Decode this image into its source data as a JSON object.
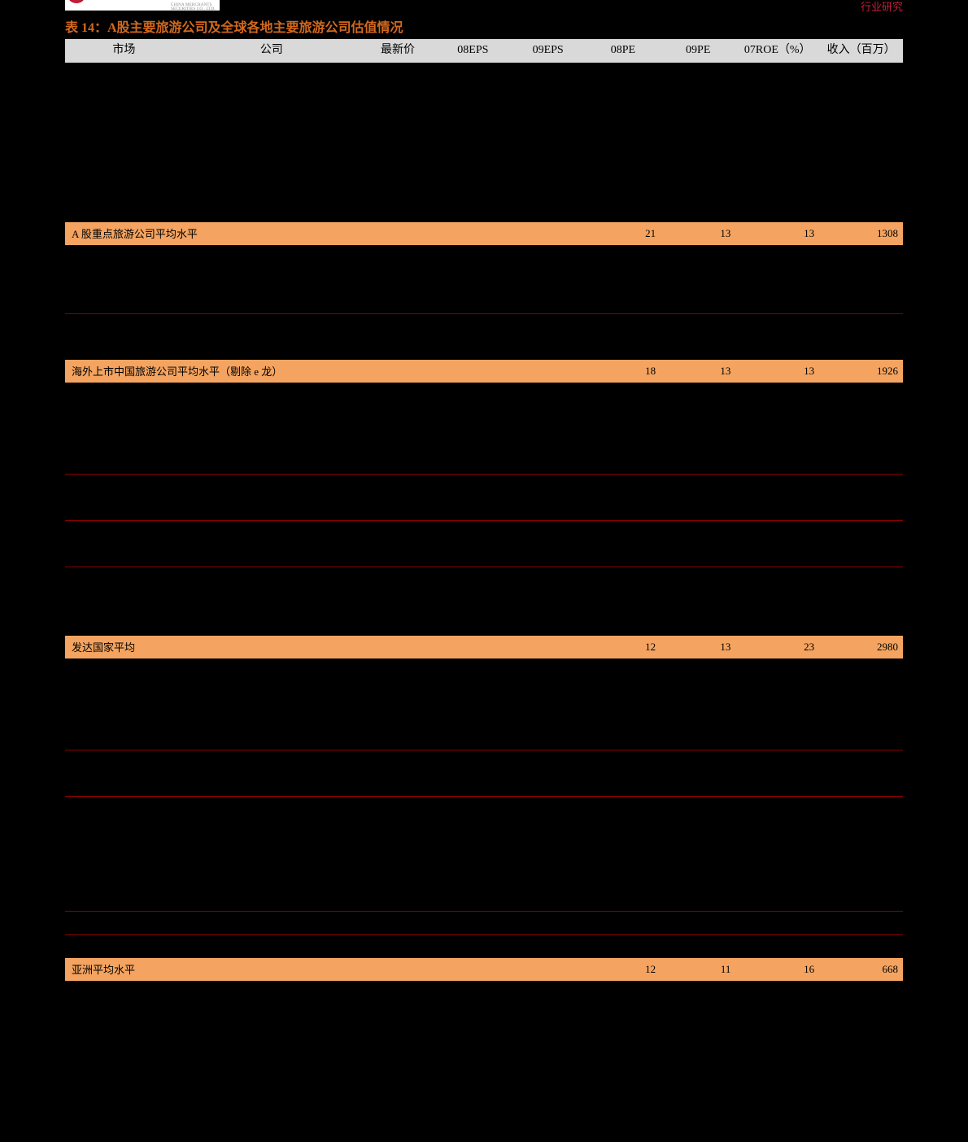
{
  "header": {
    "logo_sub": "CHINA MERCHANTS SECURITIES CO., LTD.",
    "right_label": "行业研究"
  },
  "title": "表 14：A股主要旅游公司及全球各地主要旅游公司估值情况",
  "columns": [
    "市场",
    "公司",
    "最新价",
    "08EPS",
    "09EPS",
    "08PE",
    "09PE",
    "07ROE（%）",
    "收入（百万）"
  ],
  "sections": [
    {
      "rows": [
        {
          "sep": false,
          "cells": [
            "",
            "",
            "",
            "",
            "",
            "",
            "",
            "",
            ""
          ]
        },
        {
          "sep": false,
          "cells": [
            "",
            "",
            "",
            "",
            "",
            "",
            "",
            "",
            ""
          ]
        },
        {
          "sep": false,
          "cells": [
            "",
            "",
            "",
            "",
            "",
            "",
            "",
            "",
            ""
          ]
        },
        {
          "sep": false,
          "cells": [
            "",
            "",
            "",
            "",
            "",
            "",
            "",
            "",
            ""
          ]
        },
        {
          "sep": false,
          "cells": [
            "",
            "",
            "",
            "",
            "",
            "",
            "",
            "",
            ""
          ]
        },
        {
          "sep": false,
          "cells": [
            "",
            "",
            "",
            "",
            "",
            "",
            "",
            "",
            ""
          ]
        },
        {
          "sep": false,
          "cells": [
            "",
            "",
            "",
            "",
            "",
            "",
            "",
            "",
            ""
          ]
        }
      ],
      "summary": {
        "label": "A 股重点旅游公司平均水平",
        "pe08": "21",
        "pe09": "13",
        "roe": "13",
        "rev": "1308"
      }
    },
    {
      "rows": [
        {
          "sep": false,
          "cells": [
            "",
            "",
            "",
            "",
            "",
            "",
            "",
            "",
            ""
          ]
        },
        {
          "sep": false,
          "cells": [
            "",
            "",
            "",
            "",
            "",
            "",
            "",
            "",
            ""
          ]
        },
        {
          "sep": true,
          "cells": [
            "",
            "",
            "",
            "",
            "",
            "",
            "",
            "",
            ""
          ]
        },
        {
          "sep": false,
          "cells": [
            "",
            "",
            "",
            "",
            "",
            "",
            "",
            "",
            ""
          ]
        },
        {
          "sep": false,
          "cells": [
            "",
            "",
            "",
            "",
            "",
            "",
            "",
            "",
            ""
          ]
        }
      ],
      "summary": {
        "label": "海外上市中国旅游公司平均水平（剔除 e 龙）",
        "pe08": "18",
        "pe09": "13",
        "roe": "13",
        "rev": "1926"
      }
    },
    {
      "rows": [
        {
          "sep": false,
          "cells": [
            "",
            "",
            "",
            "",
            "",
            "",
            "",
            "",
            ""
          ]
        },
        {
          "sep": false,
          "cells": [
            "",
            "",
            "",
            "",
            "",
            "",
            "",
            "",
            ""
          ]
        },
        {
          "sep": false,
          "cells": [
            "",
            "",
            "",
            "",
            "",
            "",
            "",
            "",
            ""
          ]
        },
        {
          "sep": true,
          "cells": [
            "",
            "",
            "",
            "",
            "",
            "",
            "",
            "",
            ""
          ]
        },
        {
          "sep": false,
          "cells": [
            "",
            "",
            "",
            "",
            "",
            "",
            "",
            "",
            ""
          ]
        },
        {
          "sep": true,
          "cells": [
            "",
            "",
            "",
            "",
            "",
            "",
            "",
            "",
            ""
          ]
        },
        {
          "sep": false,
          "cells": [
            "",
            "",
            "",
            "",
            "",
            "",
            "",
            "",
            ""
          ]
        },
        {
          "sep": true,
          "cells": [
            "",
            "",
            "",
            "",
            "",
            "",
            "",
            "",
            ""
          ]
        },
        {
          "sep": false,
          "cells": [
            "",
            "",
            "",
            "",
            "",
            "",
            "",
            "",
            ""
          ]
        },
        {
          "sep": false,
          "cells": [
            "",
            "",
            "",
            "",
            "",
            "",
            "",
            "",
            ""
          ]
        },
        {
          "sep": false,
          "cells": [
            "",
            "",
            "",
            "",
            "",
            "",
            "",
            "",
            ""
          ]
        }
      ],
      "summary": {
        "label": "发达国家平均",
        "pe08": "12",
        "pe09": "13",
        "roe": "23",
        "rev": "2980"
      }
    },
    {
      "rows": [
        {
          "sep": false,
          "cells": [
            "",
            "",
            "",
            "",
            "",
            "",
            "",
            "",
            ""
          ]
        },
        {
          "sep": false,
          "cells": [
            "",
            "",
            "",
            "",
            "",
            "",
            "",
            "",
            ""
          ]
        },
        {
          "sep": false,
          "cells": [
            "",
            "",
            "",
            "",
            "",
            "",
            "",
            "",
            ""
          ]
        },
        {
          "sep": true,
          "cells": [
            "",
            "",
            "",
            "",
            "",
            "",
            "",
            "",
            ""
          ]
        },
        {
          "sep": false,
          "cells": [
            "",
            "",
            "",
            "",
            "",
            "",
            "",
            "",
            ""
          ]
        },
        {
          "sep": true,
          "cells": [
            "",
            "",
            "",
            "",
            "",
            "",
            "",
            "",
            ""
          ]
        },
        {
          "sep": false,
          "cells": [
            "",
            "",
            "",
            "",
            "",
            "",
            "",
            "",
            ""
          ]
        },
        {
          "sep": false,
          "cells": [
            "",
            "",
            "",
            "",
            "",
            "",
            "",
            "",
            ""
          ]
        },
        {
          "sep": false,
          "cells": [
            "",
            "",
            "",
            "",
            "",
            "",
            "",
            "",
            ""
          ]
        },
        {
          "sep": false,
          "cells": [
            "",
            "",
            "",
            "",
            "",
            "",
            "",
            "",
            ""
          ]
        },
        {
          "sep": true,
          "cells": [
            "",
            "",
            "",
            "",
            "",
            "",
            "",
            "",
            ""
          ]
        },
        {
          "sep": true,
          "cells": [
            "",
            "",
            "",
            "",
            "",
            "",
            "",
            "",
            ""
          ]
        },
        {
          "sep": false,
          "cells": [
            "",
            "",
            "",
            "",
            "",
            "",
            "",
            "",
            ""
          ]
        }
      ],
      "summary": {
        "label": "亚洲平均水平",
        "pe08": "12",
        "pe09": "11",
        "roe": "16",
        "rev": "668"
      }
    }
  ],
  "styles": {
    "bg": "#000000",
    "header_gray": "#d9d9d9",
    "summary_orange": "#f4a460",
    "title_color": "#d2691e",
    "sep_color": "#8b0000",
    "header_right_color": "#c41e3a"
  }
}
